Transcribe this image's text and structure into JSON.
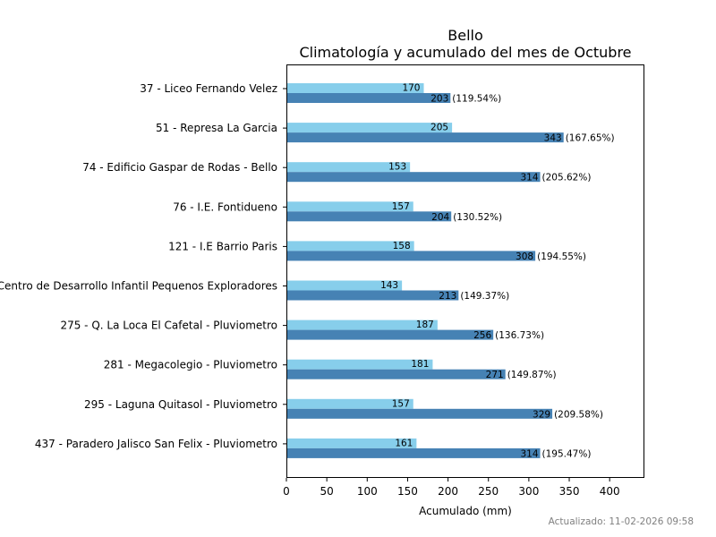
{
  "chart_data": {
    "type": "bar",
    "orientation": "horizontal",
    "title": "Bello",
    "subtitle": "Climatología y acumulado del mes de Octubre",
    "xlabel": "Acumulado (mm)",
    "ylabel": "",
    "xlim": [
      0,
      443
    ],
    "xticks": [
      0,
      50,
      100,
      150,
      200,
      250,
      300,
      350,
      400
    ],
    "grid": false,
    "categories": [
      "37 - Liceo Fernando Velez",
      "51 - Represa La Garcia ",
      "74 - Edificio Gaspar de Rodas - Bello",
      "76 - I.E. Fontidueno",
      "121 - I.E Barrio Paris",
      "Centro de Desarrollo Infantil Pequenos Exploradores",
      "275 - Q. La Loca El Cafetal - Pluviometro",
      "281 - Megacolegio - Pluviometro",
      "295 - Laguna Quitasol - Pluviometro",
      "437 - Paradero Jalisco San Felix - Pluviometro"
    ],
    "series": [
      {
        "name": "Climatología",
        "color": "#87ceeb",
        "values": [
          170,
          205,
          153,
          157,
          158,
          143,
          187,
          181,
          157,
          161
        ]
      },
      {
        "name": "Acumulado",
        "color": "#4682b4",
        "values": [
          203,
          343,
          314,
          204,
          308,
          213,
          256,
          271,
          329,
          314
        ],
        "percent_labels": [
          "(119.54%)",
          "(167.65%)",
          "(205.62%)",
          "(130.52%)",
          "(194.55%)",
          "(149.37%)",
          "(136.73%)",
          "(149.87%)",
          "(209.58%)",
          "(195.47%)"
        ]
      }
    ]
  },
  "footer": {
    "updated": "Actualizado: 11-02-2026 09:58"
  }
}
